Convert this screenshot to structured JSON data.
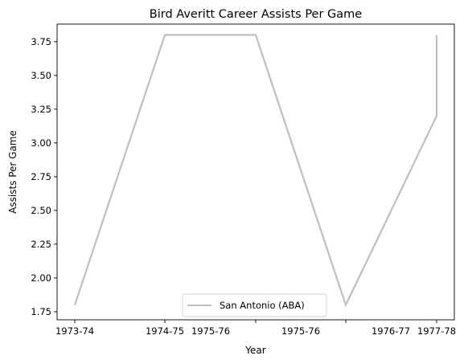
{
  "chart_data": {
    "type": "line",
    "title": "Bird Averitt Career Assists Per Game",
    "xlabel": "Year",
    "ylabel": "Assists Per Game",
    "x_tick_labels": [
      "1973-74",
      "1974-75",
      "1975-76",
      "1975-76",
      "1976-77",
      "1977-78"
    ],
    "y_ticks": [
      1.75,
      2.0,
      2.25,
      2.5,
      2.75,
      3.0,
      3.25,
      3.5,
      3.75
    ],
    "y_tick_labels": [
      "1.75",
      "2.00",
      "2.25",
      "2.50",
      "2.75",
      "3.00",
      "3.25",
      "3.50",
      "3.75"
    ],
    "ylim": [
      1.69,
      3.88
    ],
    "grid": false,
    "legend_position": "lower center",
    "series": [
      {
        "name": "San Antonio (ABA)",
        "color": "#bfbfbf",
        "points": [
          {
            "x": "1973-74",
            "y": 1.8
          },
          {
            "x": "1974-75",
            "y": 3.8
          },
          {
            "x": "1975-76",
            "y": 3.8
          },
          {
            "x": "1976-77",
            "y": 1.8
          },
          {
            "x": "1977-78",
            "y": 3.2
          },
          {
            "x": "1977-78",
            "y": 3.8
          }
        ]
      }
    ]
  }
}
